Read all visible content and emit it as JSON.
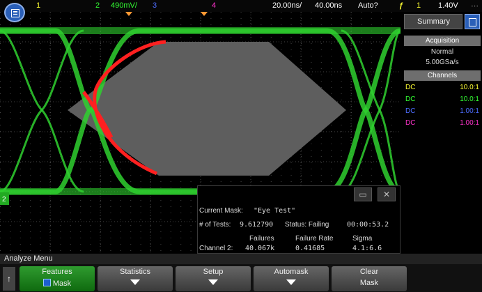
{
  "topbar": {
    "ch1_num": "1",
    "ch2_num": "2",
    "ch2_scale": "490mV/",
    "ch3_num": "3",
    "ch4_num": "4",
    "timebase": "20.00ns/",
    "delay": "40.00ns",
    "trigger_mode": "Auto?",
    "trigger_ch": "1",
    "trigger_level": "1.40V"
  },
  "side_panel": {
    "title": "Summary",
    "acquisition_header": "Acquisition",
    "acq_mode": "Normal",
    "sample_rate": "5.00GSa/s",
    "channels_header": "Channels",
    "channels": [
      {
        "coupling": "DC",
        "ratio": "10.0:1",
        "color": "#ffff33"
      },
      {
        "coupling": "DC",
        "ratio": "10.0:1",
        "color": "#33ff33"
      },
      {
        "coupling": "DC",
        "ratio": "1.00:1",
        "color": "#4d6dff"
      },
      {
        "coupling": "DC",
        "ratio": "1.00:1",
        "color": "#ff33cc"
      }
    ]
  },
  "results": {
    "mask_label": "Current Mask:",
    "mask_name": "\"Eye Test\"",
    "tests_label": "# of Tests:",
    "tests_value": "9.612790",
    "status_label": "Status: Failing",
    "elapsed": "00:00:53.2",
    "col_failures": "Failures",
    "col_failure_rate": "Failure Rate",
    "col_sigma": "Sigma",
    "row_label": "Channel 2:",
    "failures": "40.067k",
    "failure_rate": "0.41685",
    "sigma": "4.1:6.6"
  },
  "menu": {
    "title": "Analyze Menu",
    "softkeys": [
      {
        "line1": "Features",
        "line2": "Mask",
        "active": true
      },
      {
        "line1": "Statistics",
        "line2": ""
      },
      {
        "line1": "Setup",
        "line2": ""
      },
      {
        "line1": "Automask",
        "line2": ""
      },
      {
        "line1": "Clear",
        "line2": "Mask"
      }
    ]
  },
  "colors": {
    "trace": "#2fd02f",
    "fail": "#ff2020",
    "mask": "#5e5e5e",
    "grid": "#3a3a3a"
  }
}
